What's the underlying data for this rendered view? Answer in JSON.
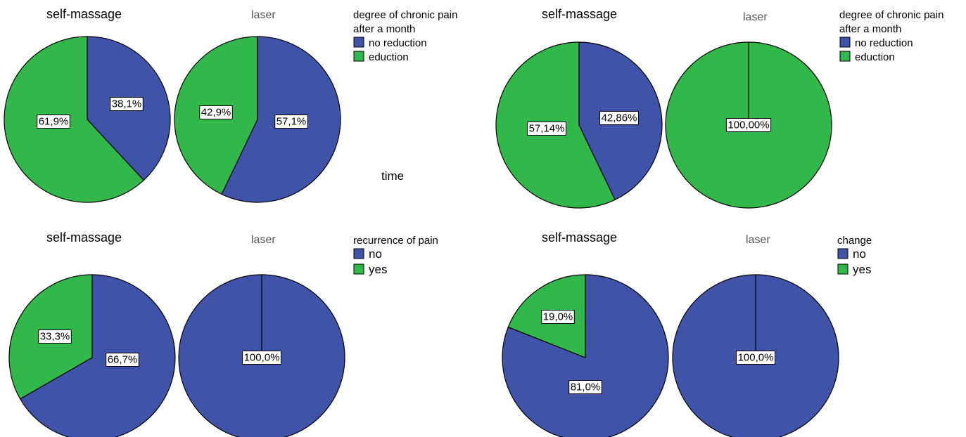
{
  "colors": {
    "no_reduction": "#3f54a8",
    "reduction": "#32b84a",
    "outline": "#000000"
  },
  "center_note": "time",
  "chart_data": [
    {
      "type": "pie",
      "legend_title": [
        "degree of chronic pain",
        "after a month"
      ],
      "categories": [
        "no reduction",
        "eduction"
      ],
      "pies": [
        {
          "title": "self-massage",
          "values": [
            38.1,
            61.9
          ],
          "labels": [
            "38,1%",
            "61,9%"
          ]
        },
        {
          "title": "laser",
          "values": [
            57.1,
            42.9
          ],
          "labels": [
            "57,1%",
            "42,9%"
          ]
        }
      ]
    },
    {
      "type": "pie",
      "legend_title": [
        "degree of chronic pain",
        "after a month"
      ],
      "categories": [
        "no reduction",
        "eduction"
      ],
      "pies": [
        {
          "title": "self-massage",
          "values": [
            42.86,
            57.14
          ],
          "labels": [
            "42,86%",
            "57,14%"
          ]
        },
        {
          "title": "laser",
          "values": [
            0,
            100
          ],
          "labels": [
            "",
            "100,00%"
          ]
        }
      ]
    },
    {
      "type": "pie",
      "legend_title": [
        "recurrence of pain"
      ],
      "categories": [
        "no",
        "yes"
      ],
      "pies": [
        {
          "title": "self-massage",
          "values": [
            66.7,
            33.3
          ],
          "labels": [
            "66,7%",
            "33,3%"
          ]
        },
        {
          "title": "laser",
          "values": [
            100,
            0
          ],
          "labels": [
            "100,0%",
            ""
          ]
        }
      ]
    },
    {
      "type": "pie",
      "legend_title": [
        "change"
      ],
      "categories": [
        "no",
        "yes"
      ],
      "pies": [
        {
          "title": "self-massage",
          "values": [
            81.0,
            19.0
          ],
          "labels": [
            "81,0%",
            "19,0%"
          ]
        },
        {
          "title": "laser",
          "values": [
            100,
            0
          ],
          "labels": [
            "100,0%",
            ""
          ]
        }
      ]
    }
  ]
}
